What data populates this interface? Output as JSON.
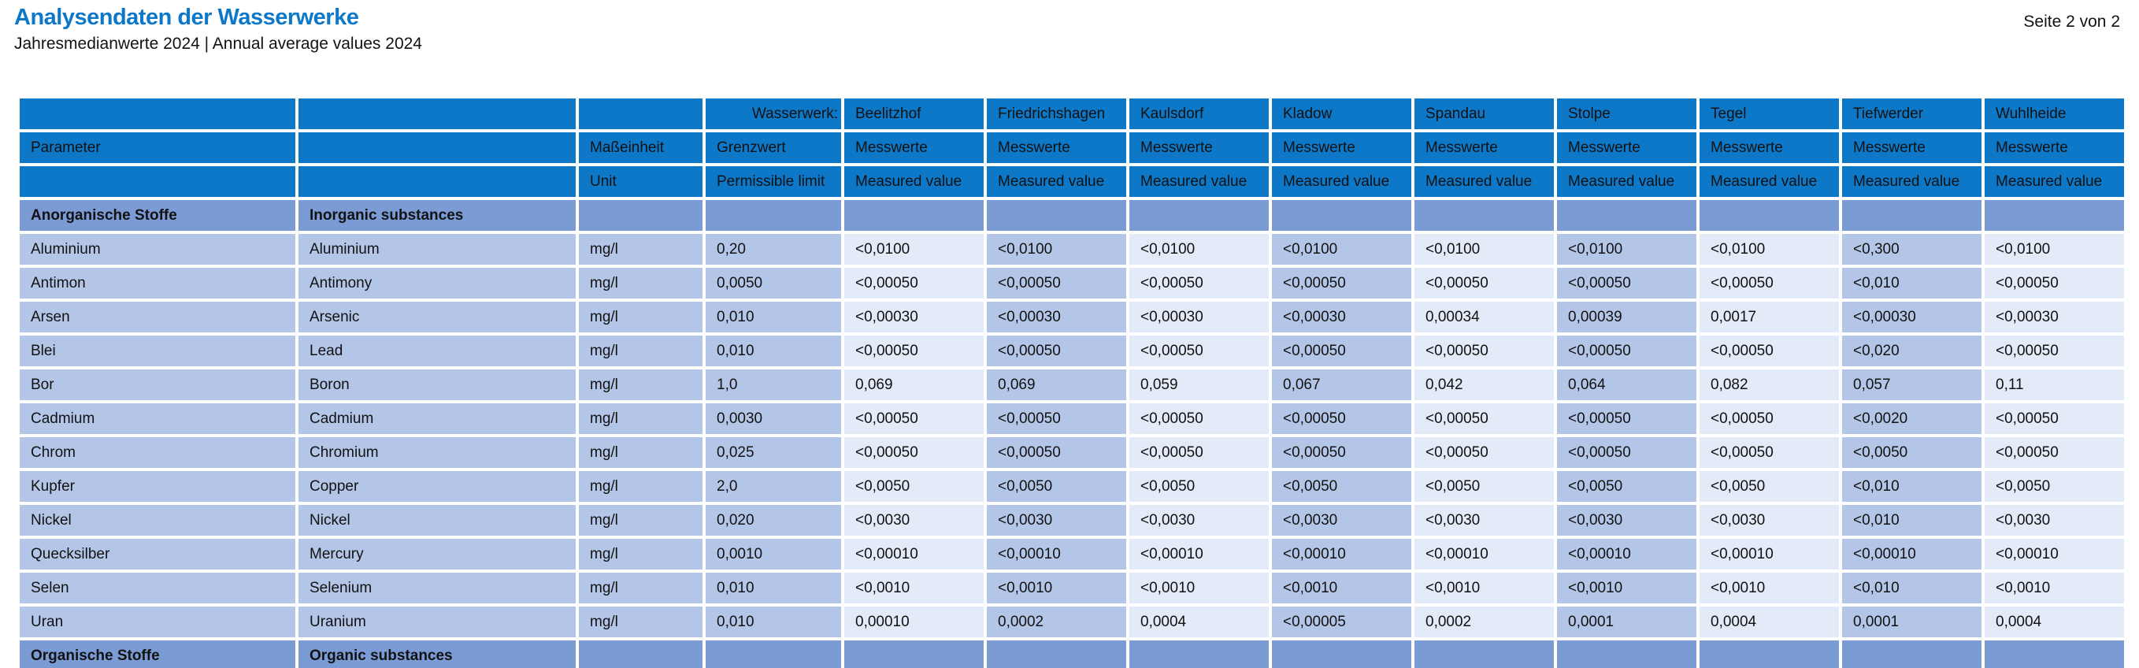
{
  "page": {
    "title": "Analysendaten der Wasserwerke",
    "subtitle": "Jahresmedianwerte 2024 | Annual average values 2024",
    "page_indicator": "Seite 2 von 2"
  },
  "colors": {
    "header_blue": "#0d77c8",
    "title_blue": "#0d77c8",
    "section_row_blue": "#7b9bd5",
    "cell_medium_blue": "#b4c6e7",
    "cell_light_blue": "#e3eaf8",
    "grid_gap_white": "#ffffff"
  },
  "table": {
    "waterworks_label": "Wasserwerk:",
    "waterworks": [
      "Beelitzhof",
      "Friedrichshagen",
      "Kaulsdorf",
      "Kladow",
      "Spandau",
      "Stolpe",
      "Tegel",
      "Tiefwerder",
      "Wuhlheide"
    ],
    "header_row2": {
      "parameter": "Parameter",
      "unit_de": "Maßeinheit",
      "limit_de": "Grenzwert",
      "values_de": "Messwerte"
    },
    "header_row3": {
      "unit_en": "Unit",
      "limit_en": "Permissible limit",
      "values_en": "Measured value"
    },
    "sections": [
      {
        "title_de": "Anorganische Stoffe",
        "title_en": "Inorganic substances",
        "rows": [
          {
            "de": "Aluminium",
            "en": "Aluminium",
            "unit": "mg/l",
            "limit": "0,20",
            "values": [
              "<0,0100",
              "<0,0100",
              "<0,0100",
              "<0,0100",
              "<0,0100",
              "<0,0100",
              "<0,0100",
              "<0,300",
              "<0,0100"
            ]
          },
          {
            "de": "Antimon",
            "en": "Antimony",
            "unit": "mg/l",
            "limit": "0,0050",
            "values": [
              "<0,00050",
              "<0,00050",
              "<0,00050",
              "<0,00050",
              "<0,00050",
              "<0,00050",
              "<0,00050",
              "<0,010",
              "<0,00050"
            ]
          },
          {
            "de": "Arsen",
            "en": "Arsenic",
            "unit": "mg/l",
            "limit": "0,010",
            "values": [
              "<0,00030",
              "<0,00030",
              "<0,00030",
              "<0,00030",
              "0,00034",
              "0,00039",
              "0,0017",
              "<0,00030",
              "<0,00030"
            ]
          },
          {
            "de": "Blei",
            "en": "Lead",
            "unit": "mg/l",
            "limit": "0,010",
            "values": [
              "<0,00050",
              "<0,00050",
              "<0,00050",
              "<0,00050",
              "<0,00050",
              "<0,00050",
              "<0,00050",
              "<0,020",
              "<0,00050"
            ]
          },
          {
            "de": "Bor",
            "en": "Boron",
            "unit": "mg/l",
            "limit": "1,0",
            "values": [
              "0,069",
              "0,069",
              "0,059",
              "0,067",
              "0,042",
              "0,064",
              "0,082",
              "0,057",
              "0,11"
            ]
          },
          {
            "de": "Cadmium",
            "en": "Cadmium",
            "unit": "mg/l",
            "limit": "0,0030",
            "values": [
              "<0,00050",
              "<0,00050",
              "<0,00050",
              "<0,00050",
              "<0,00050",
              "<0,00050",
              "<0,00050",
              "<0,0020",
              "<0,00050"
            ]
          },
          {
            "de": "Chrom",
            "en": "Chromium",
            "unit": "mg/l",
            "limit": "0,025",
            "values": [
              "<0,00050",
              "<0,00050",
              "<0,00050",
              "<0,00050",
              "<0,00050",
              "<0,00050",
              "<0,00050",
              "<0,0050",
              "<0,00050"
            ]
          },
          {
            "de": "Kupfer",
            "en": "Copper",
            "unit": "mg/l",
            "limit": "2,0",
            "values": [
              "<0,0050",
              "<0,0050",
              "<0,0050",
              "<0,0050",
              "<0,0050",
              "<0,0050",
              "<0,0050",
              "<0,010",
              "<0,0050"
            ]
          },
          {
            "de": "Nickel",
            "en": "Nickel",
            "unit": "mg/l",
            "limit": "0,020",
            "values": [
              "<0,0030",
              "<0,0030",
              "<0,0030",
              "<0,0030",
              "<0,0030",
              "<0,0030",
              "<0,0030",
              "<0,010",
              "<0,0030"
            ]
          },
          {
            "de": "Quecksilber",
            "en": "Mercury",
            "unit": "mg/l",
            "limit": "0,0010",
            "values": [
              "<0,00010",
              "<0,00010",
              "<0,00010",
              "<0,00010",
              "<0,00010",
              "<0,00010",
              "<0,00010",
              "<0,00010",
              "<0,00010"
            ]
          },
          {
            "de": "Selen",
            "en": "Selenium",
            "unit": "mg/l",
            "limit": "0,010",
            "values": [
              "<0,0010",
              "<0,0010",
              "<0,0010",
              "<0,0010",
              "<0,0010",
              "<0,0010",
              "<0,0010",
              "<0,010",
              "<0,0010"
            ]
          },
          {
            "de": "Uran",
            "en": "Uranium",
            "unit": "mg/l",
            "limit": "0,010",
            "values": [
              "0,00010",
              "0,0002",
              "0,0004",
              "<0,00005",
              "0,0002",
              "0,0001",
              "0,0004",
              "0,0001",
              "0,0004"
            ]
          }
        ]
      },
      {
        "title_de": "Organische Stoffe",
        "title_en": "Organic substances",
        "rows": []
      }
    ]
  }
}
